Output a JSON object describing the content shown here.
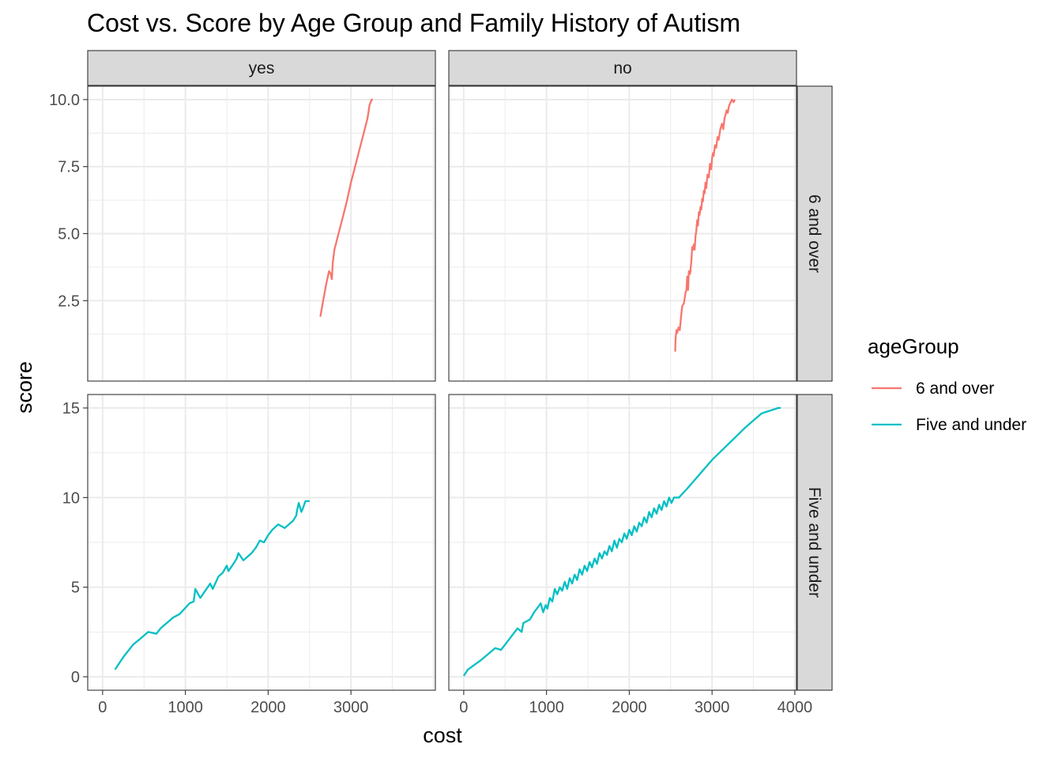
{
  "chart_data": {
    "type": "line",
    "title": "Cost vs. Score by Age Group and Family History of Autism",
    "xlabel": "cost",
    "ylabel": "score",
    "facet_columns": [
      "yes",
      "no"
    ],
    "facet_rows": [
      "6 and over",
      "Five and under"
    ],
    "xlim": [
      -180,
      4020
    ],
    "x_ticks": [
      0,
      1000,
      2000,
      3000,
      4000
    ],
    "x_tick_labels_left": [
      "0",
      "1000",
      "2000",
      "3000"
    ],
    "x_tick_labels_right": [
      "0",
      "1000",
      "2000",
      "3000",
      "4000"
    ],
    "rows": [
      {
        "name": "6 and over",
        "ylim": [
          -0.5,
          10.5
        ],
        "y_ticks": [
          2.5,
          5.0,
          7.5,
          10.0
        ],
        "y_tick_labels": [
          "2.5",
          "5.0",
          "7.5",
          "10.0"
        ]
      },
      {
        "name": "Five and under",
        "ylim": [
          -0.75,
          15.75
        ],
        "y_ticks": [
          0,
          5,
          10,
          15
        ],
        "y_tick_labels": [
          "0",
          "5",
          "10",
          "15"
        ]
      }
    ],
    "legend": {
      "title": "ageGroup",
      "position": "right",
      "entries": [
        "6 and over",
        "Five and under"
      ]
    },
    "colors": {
      "6 and over": "#F8766D",
      "Five and under": "#00BFC4"
    },
    "grid": true,
    "series": [
      {
        "name": "6 and over",
        "facet_col": "yes",
        "facet_row": "6 and over",
        "x": [
          2630,
          2665,
          2700,
          2735,
          2755,
          2770,
          2780,
          2800,
          2850,
          2900,
          2950,
          3000,
          3050,
          3100,
          3150,
          3200,
          3225,
          3250,
          3265
        ],
        "y": [
          1.9,
          2.5,
          3.1,
          3.6,
          3.5,
          3.3,
          3.9,
          4.4,
          5.0,
          5.6,
          6.2,
          6.9,
          7.5,
          8.1,
          8.7,
          9.3,
          9.8,
          10.0,
          10.0
        ]
      },
      {
        "name": "6 and over",
        "facet_col": "no",
        "facet_row": "6 and over",
        "x": [
          2555,
          2560,
          2570,
          2580,
          2595,
          2610,
          2625,
          2640,
          2660,
          2680,
          2690,
          2700,
          2710,
          2720,
          2735,
          2750,
          2760,
          2770,
          2780,
          2790,
          2800,
          2810,
          2820,
          2830,
          2840,
          2850,
          2860,
          2870,
          2880,
          2890,
          2900,
          2910,
          2920,
          2930,
          2945,
          2960,
          2975,
          2990,
          3000,
          3010,
          3020,
          3035,
          3050,
          3065,
          3080,
          3100,
          3120,
          3135,
          3150,
          3160,
          3175,
          3190,
          3200,
          3210,
          3225,
          3240,
          3260,
          3275
        ],
        "y": [
          0.6,
          1.1,
          1.4,
          1.3,
          1.5,
          1.4,
          1.9,
          2.3,
          2.4,
          2.8,
          2.9,
          3.4,
          2.9,
          3.6,
          3.5,
          4.0,
          4.5,
          4.4,
          4.6,
          4.4,
          4.9,
          5.1,
          5.5,
          5.3,
          5.8,
          5.7,
          6.0,
          5.9,
          6.3,
          6.2,
          6.6,
          6.5,
          6.9,
          6.7,
          7.2,
          7.1,
          7.6,
          7.4,
          7.8,
          8.0,
          7.9,
          8.3,
          8.2,
          8.6,
          8.5,
          8.9,
          9.1,
          8.9,
          9.3,
          9.4,
          9.6,
          9.5,
          9.7,
          9.8,
          9.9,
          10.0,
          9.9,
          10.0
        ]
      },
      {
        "name": "Five and under",
        "facet_col": "yes",
        "facet_row": "Five and under",
        "x": [
          150,
          250,
          370,
          450,
          550,
          650,
          700,
          850,
          930,
          1050,
          1100,
          1120,
          1180,
          1300,
          1330,
          1400,
          1450,
          1500,
          1520,
          1580,
          1620,
          1640,
          1700,
          1800,
          1850,
          1900,
          1950,
          2000,
          2050,
          2120,
          2200,
          2300,
          2340,
          2350,
          2370,
          2400,
          2420,
          2450,
          2480,
          2500
        ],
        "y": [
          0.4,
          1.1,
          1.8,
          2.1,
          2.5,
          2.4,
          2.7,
          3.3,
          3.5,
          4.1,
          4.2,
          4.9,
          4.4,
          5.2,
          4.9,
          5.6,
          5.8,
          6.2,
          5.9,
          6.3,
          6.6,
          6.9,
          6.5,
          6.9,
          7.2,
          7.6,
          7.5,
          7.9,
          8.2,
          8.5,
          8.3,
          8.7,
          9.0,
          9.3,
          9.7,
          9.2,
          9.4,
          9.8,
          9.8,
          9.8
        ]
      },
      {
        "name": "Five and under",
        "facet_col": "no",
        "facet_row": "Five and under",
        "x": [
          0,
          50,
          200,
          380,
          450,
          550,
          600,
          650,
          700,
          720,
          800,
          850,
          900,
          930,
          960,
          990,
          1010,
          1040,
          1070,
          1100,
          1130,
          1160,
          1190,
          1220,
          1250,
          1280,
          1310,
          1340,
          1370,
          1400,
          1430,
          1460,
          1490,
          1520,
          1550,
          1580,
          1610,
          1640,
          1670,
          1700,
          1730,
          1760,
          1790,
          1820,
          1850,
          1880,
          1910,
          1940,
          1970,
          2000,
          2030,
          2060,
          2090,
          2120,
          2150,
          2180,
          2210,
          2240,
          2270,
          2300,
          2330,
          2360,
          2390,
          2420,
          2450,
          2480,
          2510,
          2540,
          2600,
          2700,
          2850,
          3000,
          3200,
          3400,
          3600,
          3800,
          3830
        ],
        "y": [
          0.05,
          0.4,
          0.9,
          1.6,
          1.5,
          2.1,
          2.4,
          2.7,
          2.5,
          3.0,
          3.2,
          3.6,
          3.9,
          4.1,
          3.6,
          4.0,
          3.8,
          4.4,
          4.2,
          4.9,
          4.6,
          5.0,
          4.8,
          5.3,
          4.9,
          5.5,
          5.2,
          5.7,
          5.4,
          6.0,
          5.7,
          6.2,
          5.9,
          6.4,
          6.1,
          6.6,
          6.3,
          6.9,
          6.6,
          7.0,
          6.8,
          7.3,
          7.0,
          7.6,
          7.2,
          7.7,
          7.5,
          8.0,
          7.7,
          8.2,
          7.9,
          8.4,
          8.1,
          8.6,
          8.4,
          8.9,
          8.6,
          9.2,
          8.9,
          9.4,
          9.1,
          9.6,
          9.3,
          9.8,
          9.5,
          10.0,
          9.7,
          10.0,
          10.0,
          10.5,
          11.3,
          12.1,
          13.0,
          13.9,
          14.7,
          15.0,
          15.0
        ]
      }
    ]
  }
}
